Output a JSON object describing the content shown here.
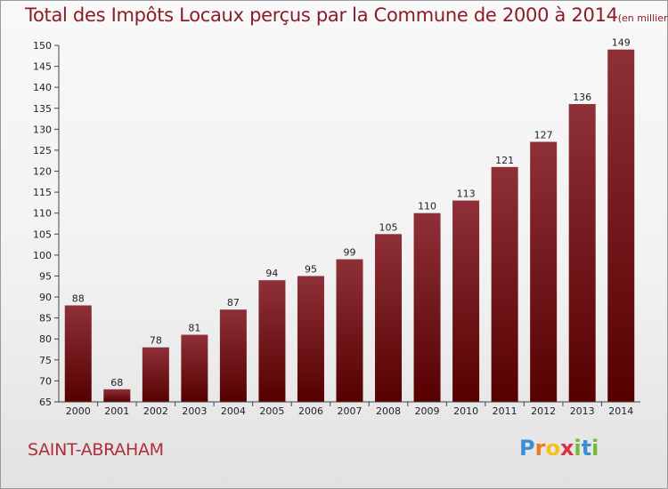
{
  "header": {
    "title": "Total des Impôts Locaux perçus par la Commune de 2000 à 2014",
    "subtitle": "(en milliers d'€)"
  },
  "footer": {
    "commune": "SAINT-ABRAHAM",
    "logo_letters": [
      "P",
      "r",
      "o",
      "x",
      "i",
      "t",
      "i"
    ],
    "logo_colors": [
      "#3a8fd6",
      "#e87b1e",
      "#f2c21b",
      "#d8323e",
      "#73b83a",
      "#3a8fd6",
      "#73b83a"
    ]
  },
  "colors": {
    "bar_top": "#8e3038",
    "bar_bottom": "#560000",
    "title": "#8b1c2a"
  },
  "chart_data": {
    "type": "bar",
    "title": "Total des Impôts Locaux perçus par la Commune de 2000 à 2014",
    "xlabel": "",
    "ylabel": "",
    "categories": [
      "2000",
      "2001",
      "2002",
      "2003",
      "2004",
      "2005",
      "2006",
      "2007",
      "2008",
      "2009",
      "2010",
      "2011",
      "2012",
      "2013",
      "2014"
    ],
    "values": [
      88,
      68,
      78,
      81,
      87,
      94,
      95,
      99,
      105,
      110,
      113,
      121,
      127,
      136,
      149
    ],
    "ylim": [
      65,
      150
    ],
    "yticks": [
      65,
      70,
      75,
      80,
      85,
      90,
      95,
      100,
      105,
      110,
      115,
      120,
      125,
      130,
      135,
      140,
      145,
      150
    ],
    "grid": false,
    "legend": "none"
  }
}
